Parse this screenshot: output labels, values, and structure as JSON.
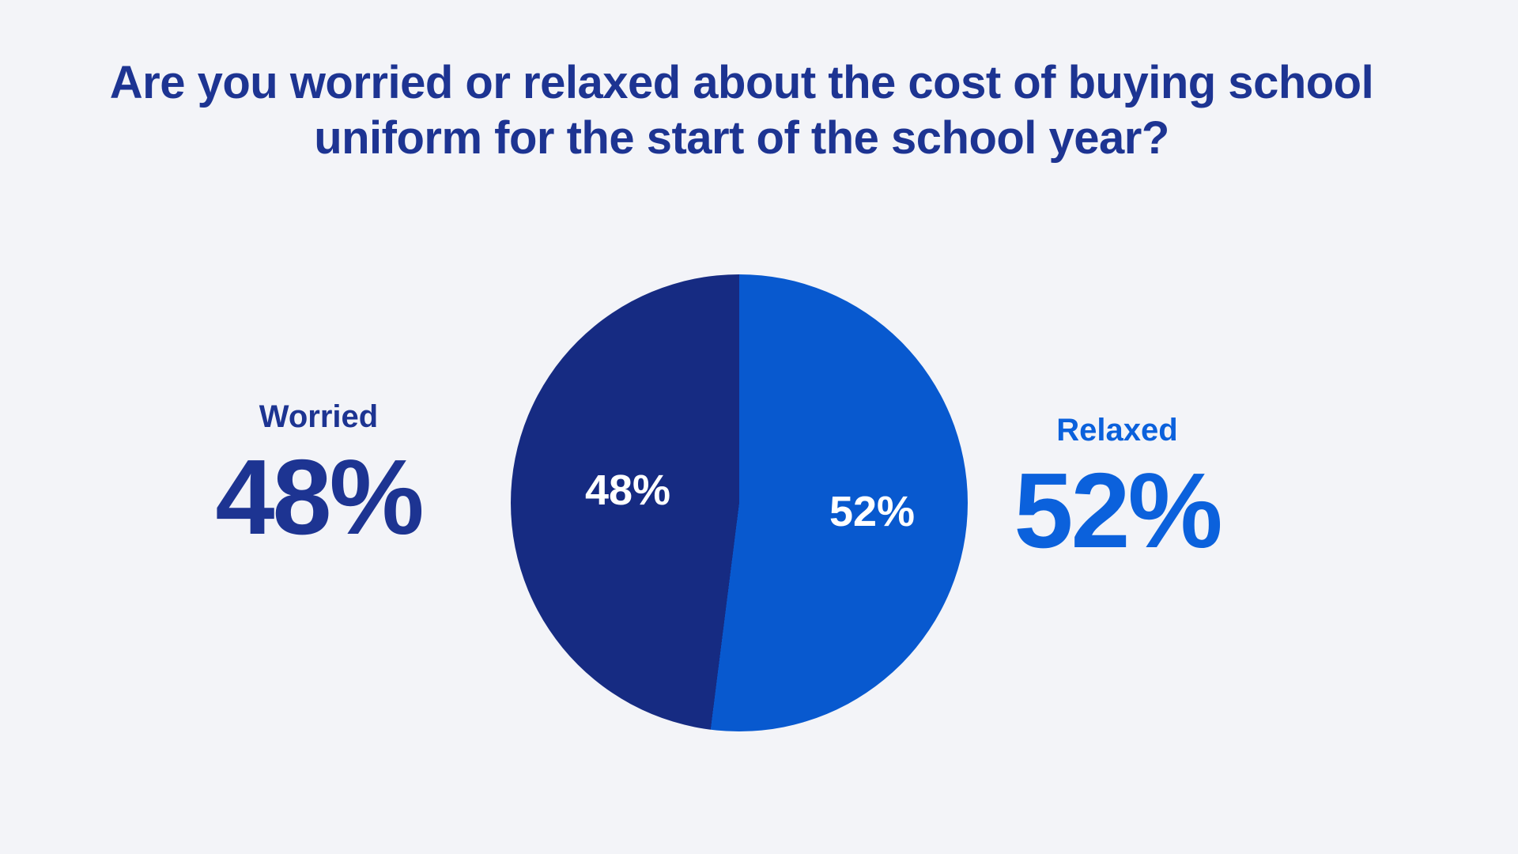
{
  "page": {
    "background_color": "#f3f4f8"
  },
  "title": {
    "line1": "Are you worried or relaxed about the cost of buying school",
    "line2": "uniform for the start of the school year?",
    "color": "#1d3492"
  },
  "chart_data": {
    "type": "pie",
    "title": "Are you worried or relaxed about the cost of buying school uniform for the start of the school year?",
    "categories": [
      "Worried",
      "Relaxed"
    ],
    "values": [
      48,
      52
    ],
    "slices": [
      {
        "label": "Worried",
        "value": 48,
        "percent_label": "48%",
        "slice_color": "#162b82",
        "label_color": "#1d3492",
        "inner_label": "48%",
        "inner_label_color": "#ffffff"
      },
      {
        "label": "Relaxed",
        "value": 52,
        "percent_label": "52%",
        "slice_color": "#0859cf",
        "label_color": "#0b61dc",
        "inner_label": "52%",
        "inner_label_color": "#ffffff"
      }
    ],
    "clockwise_order": [
      "Relaxed",
      "Worried"
    ],
    "start_angle_deg": 0,
    "direction": "clockwise",
    "legend_position": "sides",
    "grid": false
  },
  "left_callout": {
    "label": "Worried",
    "value": "48%"
  },
  "right_callout": {
    "label": "Relaxed",
    "value": "52%"
  },
  "inner_labels": {
    "worried": "48%",
    "relaxed": "52%"
  }
}
